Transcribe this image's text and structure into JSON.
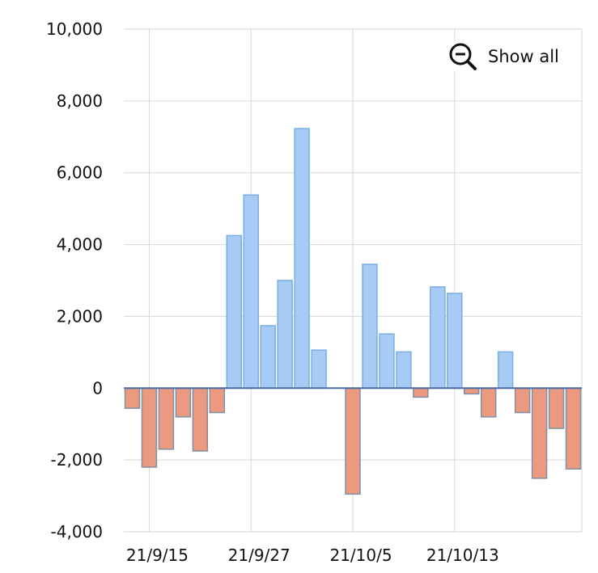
{
  "show_all": {
    "label": "Show all",
    "icon": "zoom-out-icon"
  },
  "colors": {
    "positive": "#a8cbf5",
    "positive_stroke": "#7aaee0",
    "negative": "#eb9a7f",
    "negative_stroke": "#7f8fa6",
    "grid": "#d6d6d6"
  },
  "chart_data": {
    "type": "bar",
    "title": "",
    "xlabel": "",
    "ylabel": "",
    "ylim": [
      -4000,
      10000
    ],
    "y_ticks": [
      "10,000",
      "8,000",
      "6,000",
      "4,000",
      "2,000",
      "0",
      "-2,000",
      "-4,000"
    ],
    "x_ticks": [
      "21/9/15",
      "21/9/27",
      "21/10/5",
      "21/10/13"
    ],
    "grid": true,
    "values": [
      -560,
      -2200,
      -1700,
      -800,
      -1750,
      -680,
      4250,
      5380,
      1740,
      3000,
      7230,
      1060,
      null,
      -2950,
      3450,
      1510,
      1010,
      -250,
      2820,
      2640,
      -160,
      -800,
      1010,
      -680,
      -2510,
      -1120,
      -2250
    ]
  }
}
